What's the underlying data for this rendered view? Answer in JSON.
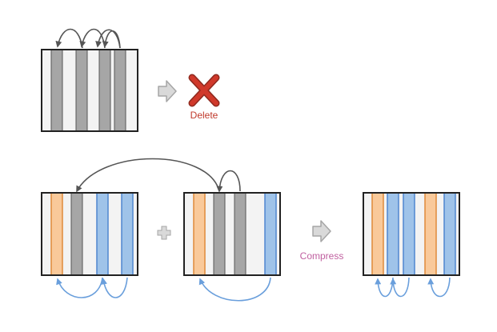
{
  "labels": {
    "delete": "Delete",
    "compress": "Compress"
  },
  "icons": {
    "step_arrow": "right-arrow-icon",
    "delete": "cross-icon",
    "combine": "plus-icon"
  },
  "colors": {
    "gray_column": "#a6a6a6",
    "light_column": "#f0f0f0",
    "orange_column": "#f9c99a",
    "orange_border": "#e08a3b",
    "blue_column": "#9fc3e9",
    "blue_border": "#4f86cf",
    "frame": "#222222",
    "gray_arrow": "#555555",
    "blue_arrow": "#6a9fdc",
    "delete_red": "#c0392b",
    "compress_pink": "#c060a0",
    "step_arrow_fill": "#d9d9d9",
    "step_arrow_stroke": "#a6a6a6"
  }
}
